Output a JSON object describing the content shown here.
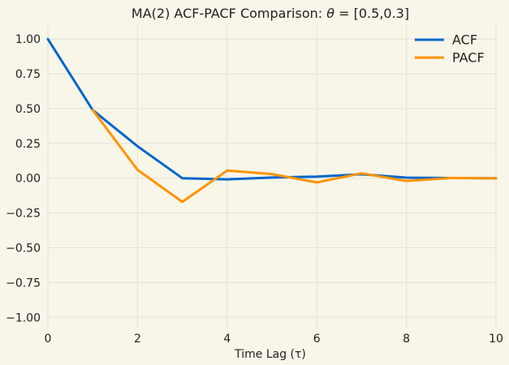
{
  "chart_data": {
    "type": "line",
    "title": "MA(2) ACF-PACF Comparison: ",
    "title_math": "θ",
    "title_suffix": " = [0.5,0.3]",
    "xlabel": "Time Lag (τ)",
    "ylabel": "",
    "xlim": [
      0,
      10
    ],
    "ylim": [
      -1.08,
      1.1
    ],
    "x_ticks": [
      0,
      2,
      4,
      6,
      8,
      10
    ],
    "y_ticks": [
      1.0,
      0.75,
      0.5,
      0.25,
      0.0,
      -0.25,
      -0.5,
      -0.75,
      -1.0
    ],
    "x_tick_labels": [
      "0",
      "2",
      "4",
      "6",
      "8",
      "10"
    ],
    "y_tick_labels": [
      "1.00",
      "0.75",
      "0.50",
      "0.25",
      "0.00",
      "−0.25",
      "−0.50",
      "−0.75",
      "−1.00"
    ],
    "grid": true,
    "legend_position": "top-right",
    "series": [
      {
        "name": "ACF",
        "color": "#0066cc",
        "x": [
          0,
          1,
          2,
          3,
          4,
          5,
          6,
          7,
          8,
          9,
          10
        ],
        "y": [
          1.0,
          0.49,
          0.23,
          0.0,
          -0.008,
          0.005,
          0.012,
          0.028,
          0.004,
          0.001,
          0.0
        ]
      },
      {
        "name": "PACF",
        "color": "#ff9400",
        "x": [
          1,
          2,
          3,
          4,
          5,
          6,
          7,
          8,
          9,
          10
        ],
        "y": [
          0.49,
          0.06,
          -0.17,
          0.055,
          0.03,
          -0.03,
          0.035,
          -0.02,
          0.002,
          -0.001
        ]
      }
    ]
  }
}
